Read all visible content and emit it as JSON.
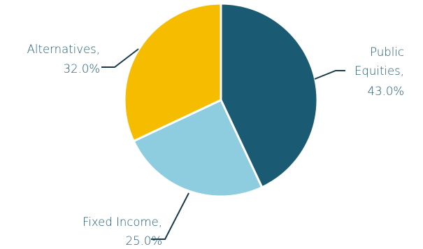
{
  "chart_data": {
    "type": "pie",
    "title": "",
    "slices": [
      {
        "label_lines": [
          "Public",
          "Equities,"
        ],
        "value": 43.0,
        "value_text": "43.0%",
        "color": "#1a5a72"
      },
      {
        "label_lines": [
          "Fixed Income,"
        ],
        "value": 25.0,
        "value_text": "25.0%",
        "color": "#8ecddf"
      },
      {
        "label_lines": [
          "Alternatives,"
        ],
        "value": 32.0,
        "value_text": "32.0%",
        "color": "#f5bc00"
      }
    ],
    "label_color": "#1a5a72",
    "leader_color": "#1a3a4a",
    "start_angle_deg": 0,
    "direction": "clockwise"
  }
}
